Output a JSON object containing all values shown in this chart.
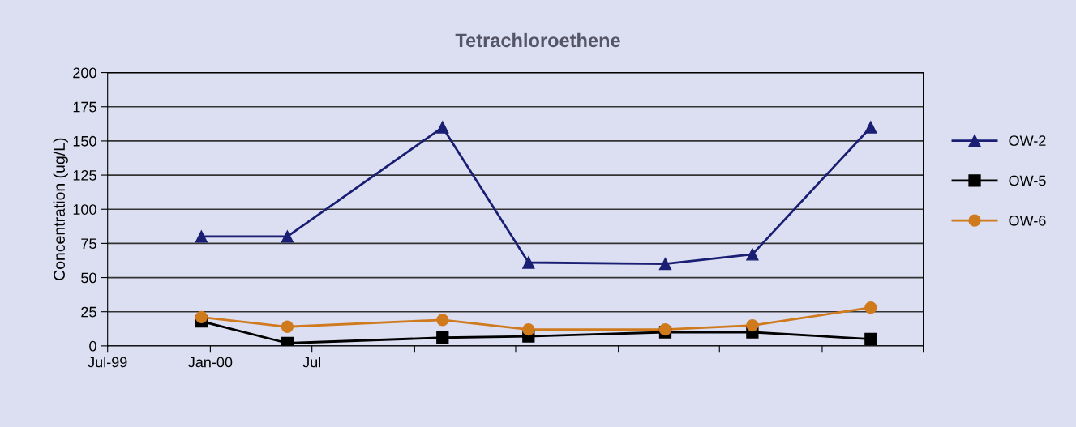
{
  "chart_data": {
    "type": "line",
    "title": "Tetrachloroethene",
    "ylabel": "Concentration (ug/L)",
    "x": [
      "1999-12-16",
      "2000-05-18",
      "2001-02-20",
      "2001-07-24",
      "2002-03-26",
      "2002-08-29",
      "2003-03-29"
    ],
    "series": [
      {
        "name": "OW-2",
        "color": "#1a1f73",
        "marker": "triangle",
        "values": [
          80,
          80,
          160,
          61,
          60,
          67,
          160
        ]
      },
      {
        "name": "OW-5",
        "color": "#000000",
        "marker": "square",
        "values": [
          18,
          2,
          6,
          7,
          10,
          10,
          5
        ]
      },
      {
        "name": "OW-6",
        "color": "#d07a1e",
        "marker": "circle",
        "values": [
          21,
          14,
          19,
          12,
          12,
          15,
          28
        ]
      }
    ],
    "xlim": [
      "1999-07-01",
      "2003-07-01"
    ],
    "xticks": [
      {
        "value": "1999-07-01",
        "label": "Jul-99"
      },
      {
        "value": "2000-01-01",
        "label": "Jan-00"
      },
      {
        "value": "2000-07-01",
        "label": "Jul"
      },
      {
        "value": "2001-01-01",
        "label": null
      },
      {
        "value": "2001-07-01",
        "label": null
      },
      {
        "value": "2002-01-01",
        "label": null
      },
      {
        "value": "2002-07-01",
        "label": null
      },
      {
        "value": "2003-01-01",
        "label": null
      },
      {
        "value": "2003-07-01",
        "label": null
      }
    ],
    "ylim": [
      0,
      200
    ],
    "yticks": [
      0,
      25,
      50,
      75,
      100,
      125,
      150,
      175,
      200
    ],
    "grid": "y",
    "legend": "right",
    "line_style": "solid"
  }
}
